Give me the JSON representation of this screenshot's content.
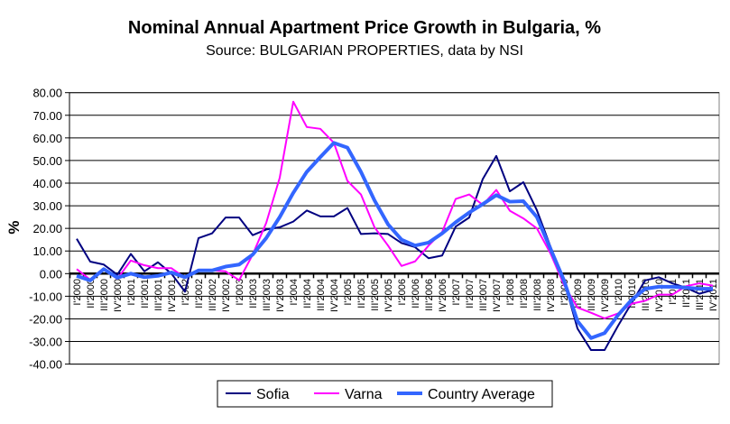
{
  "chart_data": {
    "type": "line",
    "title": "Nominal Annual Apartment Price Growth in Bulgaria, %",
    "subtitle": "Source: BULGARIAN PROPERTIES, data by NSI",
    "xlabel": "",
    "ylabel": "%",
    "ylim": [
      -40,
      80
    ],
    "yticks": [
      "80.00",
      "70.00",
      "60.00",
      "50.00",
      "40.00",
      "30.00",
      "20.00",
      "10.00",
      "0.00",
      "-10.00",
      "-20.00",
      "-30.00",
      "-40.00"
    ],
    "grid": true,
    "legend_placement": "bottom",
    "categories": [
      "I'2000",
      "II'2000",
      "III'2000",
      "IV'2000",
      "I'2001",
      "II'2001",
      "III'2001",
      "IV'2001",
      "I'2002",
      "II'2002",
      "III'2002",
      "IV'2002",
      "I'2003",
      "II'2003",
      "III'2003",
      "IV'2003",
      "I'2004",
      "II'2004",
      "III'2004",
      "IV'2004",
      "I'2005",
      "II'2005",
      "III'2005",
      "IV'2005",
      "I'2006",
      "II'2006",
      "III'2006",
      "IV'2006",
      "I'2007",
      "II'2007",
      "III'2007",
      "IV'2007",
      "I'2008",
      "II'2008",
      "III'2008",
      "IV'2008",
      "I'2009",
      "II'2009",
      "III'2009",
      "IV'2009",
      "I'2010",
      "II'2010",
      "III'2010",
      "IV'2010",
      "I'2011",
      "II'2011",
      "III'2011",
      "IV'2011"
    ],
    "series": [
      {
        "name": "Sofia",
        "color": "#000080",
        "values": [
          15.4,
          5.3,
          4,
          -0.5,
          8.7,
          1,
          5,
          0,
          -8,
          15.7,
          17.8,
          24.8,
          24.8,
          17,
          19.5,
          20.5,
          23,
          27.9,
          25.3,
          25.3,
          29,
          17.5,
          17.8,
          17.5,
          13.5,
          11.7,
          6.8,
          8,
          20.8,
          24.8,
          41.8,
          52,
          36.4,
          40.4,
          28,
          12,
          -3,
          -24.3,
          -33.8,
          -33.8,
          -23,
          -13,
          -3,
          -1.6,
          -4.3,
          -6.2,
          -8.9,
          -7.2
        ]
      },
      {
        "name": "Varna",
        "color": "#ff00ff",
        "values": [
          2,
          -2.7,
          1.7,
          -2.3,
          5.8,
          3.7,
          2.4,
          2.4,
          -1.8,
          1.4,
          1.4,
          1,
          -2.9,
          8.4,
          22.4,
          42.4,
          76,
          64.8,
          64,
          57.8,
          41,
          35,
          20.5,
          12.4,
          3.4,
          5.4,
          12.4,
          18.4,
          33,
          35,
          30.4,
          37,
          27.8,
          24.4,
          20,
          9,
          -5,
          -15,
          -17.3,
          -19.8,
          -17.6,
          -13.3,
          -12,
          -9.3,
          -9.3,
          -5.6,
          -4.3,
          -5.3
        ]
      },
      {
        "name": "Country Average",
        "color": "#3366ff",
        "values": [
          -1,
          -3,
          2,
          -1.8,
          0,
          -1.6,
          -1,
          0.5,
          -1.6,
          1.4,
          1.4,
          3.1,
          4,
          8.4,
          15.7,
          25,
          35.7,
          45,
          51.5,
          57.8,
          55.7,
          45,
          32.4,
          21.8,
          15,
          12.4,
          13.7,
          17.8,
          22.7,
          27,
          30.7,
          34.7,
          31.8,
          32,
          25,
          11,
          -3,
          -21,
          -28.5,
          -26.3,
          -18.3,
          -11.6,
          -6.7,
          -5.8,
          -5.8,
          -6.2,
          -6.7,
          -6.7
        ]
      }
    ]
  }
}
